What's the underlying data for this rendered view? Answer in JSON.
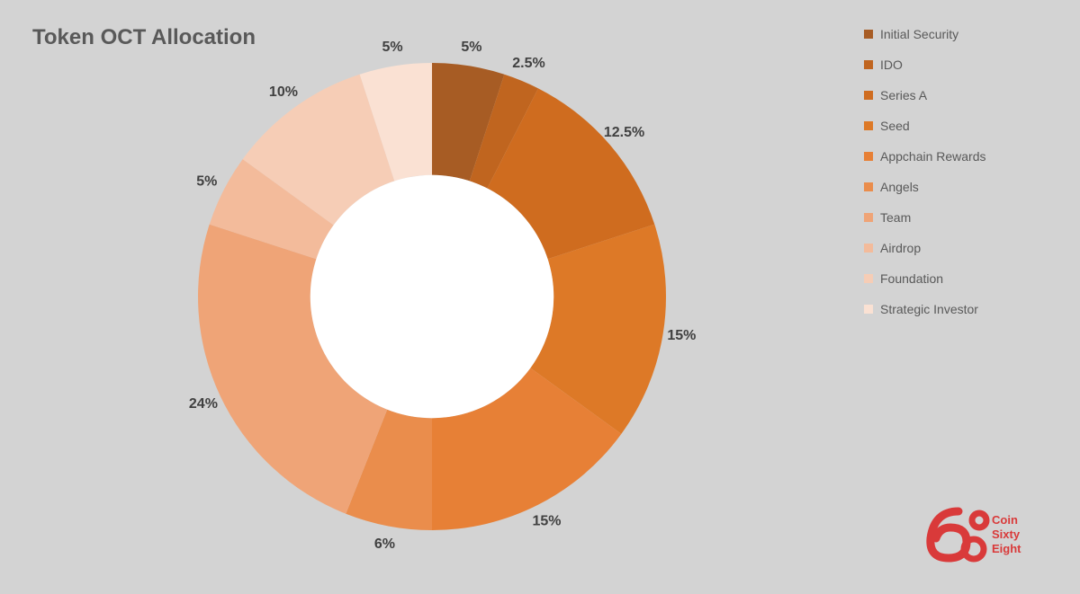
{
  "title": "Token OCT Allocation",
  "background_color": "#d3d3d3",
  "chart": {
    "type": "pie",
    "inner_radius_ratio": 0.52,
    "outer_radius": 260,
    "center_fill": "#ffffff",
    "start_angle_deg": -90,
    "label_fontsize": 16,
    "label_color": "#404040",
    "label_radius_ratio": 1.08,
    "slices": [
      {
        "name": "Initial Security",
        "value": 5,
        "label": "5%",
        "color": "#a75c24"
      },
      {
        "name": "IDO",
        "value": 2.5,
        "label": "2.5%",
        "color": "#c0651f"
      },
      {
        "name": "Series A",
        "value": 12.5,
        "label": "12.5%",
        "color": "#cf6c1f"
      },
      {
        "name": "Seed",
        "value": 15,
        "label": "15%",
        "color": "#dd7927"
      },
      {
        "name": "Appchain Rewards",
        "value": 15,
        "label": "15%",
        "color": "#e78036"
      },
      {
        "name": "Angels",
        "value": 6,
        "label": "6%",
        "color": "#ea8d4c"
      },
      {
        "name": "Team",
        "value": 24,
        "label": "24%",
        "color": "#efa477"
      },
      {
        "name": "Airdrop",
        "value": 5,
        "label": "5%",
        "color": "#f3bb9b"
      },
      {
        "name": "Foundation",
        "value": 10,
        "label": "10%",
        "color": "#f6cdb6"
      },
      {
        "name": "Strategic Investor",
        "value": 5,
        "label": "5%",
        "color": "#fae1d3"
      }
    ]
  },
  "legend": {
    "title_color": "#595959",
    "fontsize": 14,
    "swatch_size": 10
  },
  "logo": {
    "brand_lines": [
      "Coin",
      "Sixty",
      "Eight"
    ],
    "color": "#d93a3a"
  }
}
